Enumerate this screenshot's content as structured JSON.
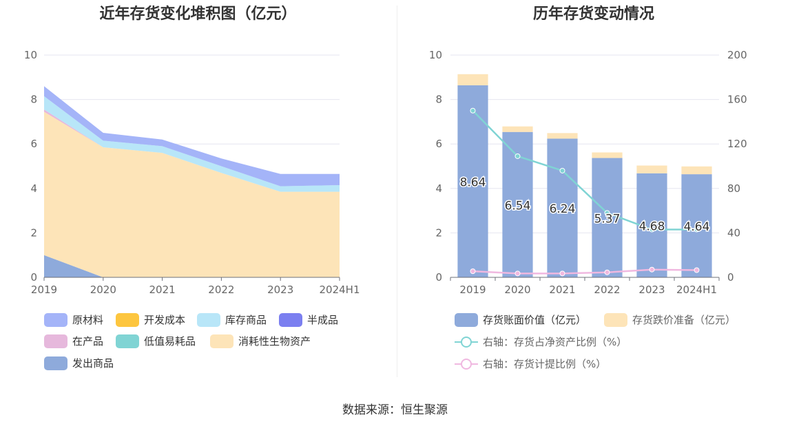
{
  "source": "数据来源：恒生聚源",
  "chart_data": [
    {
      "type": "area",
      "title": "近年存货变化堆积图（亿元）",
      "x": [
        "2019",
        "2020",
        "2021",
        "2022",
        "2023",
        "2024H1"
      ],
      "ylim": [
        0,
        10
      ],
      "yticks": [
        "0",
        "2",
        "4",
        "6",
        "8",
        "10"
      ],
      "stacked": true,
      "grid": true,
      "legend_position": "bottom",
      "series": [
        {
          "name": "发出商品",
          "color": "#8eaadb",
          "values": [
            1.0,
            0,
            0,
            0,
            0,
            0
          ]
        },
        {
          "name": "消耗性生物资产",
          "color": "#fde4b8",
          "values": [
            6.45,
            5.85,
            5.6,
            4.7,
            3.85,
            3.85
          ]
        },
        {
          "name": "低值易耗品",
          "color": "#80d4d4",
          "values": [
            0,
            0,
            0,
            0,
            0,
            0
          ]
        },
        {
          "name": "在产品",
          "color": "#e6b8dc",
          "values": [
            0.1,
            0,
            0,
            0,
            0,
            0
          ]
        },
        {
          "name": "半成品",
          "color": "#7b7ff0",
          "values": [
            0,
            0,
            0,
            0,
            0,
            0
          ]
        },
        {
          "name": "库存商品",
          "color": "#b8e6f8",
          "values": [
            0.6,
            0.3,
            0.3,
            0.3,
            0.25,
            0.3
          ]
        },
        {
          "name": "开发成本",
          "color": "#fdc63f",
          "values": [
            0,
            0,
            0,
            0,
            0,
            0
          ]
        },
        {
          "name": "原材料",
          "color": "#a4b4f8",
          "values": [
            0.45,
            0.35,
            0.3,
            0.35,
            0.55,
            0.5
          ]
        }
      ],
      "legend_order": [
        "原材料",
        "开发成本",
        "库存商品",
        "半成品",
        "在产品",
        "低值易耗品",
        "消耗性生物资产",
        "发出商品"
      ]
    },
    {
      "type": "bar",
      "title": "历年存货变动情况",
      "categories": [
        "2019",
        "2020",
        "2021",
        "2022",
        "2023",
        "2024H1"
      ],
      "ylim": [
        0,
        10
      ],
      "yticks": [
        "0",
        "2",
        "4",
        "6",
        "8",
        "10"
      ],
      "y2lim": [
        0,
        200
      ],
      "y2ticks": [
        "0",
        "40",
        "80",
        "120",
        "160",
        "200"
      ],
      "grid": true,
      "legend_position": "bottom",
      "series": [
        {
          "name": "存货账面价值（亿元）",
          "type": "bar",
          "stack": "a",
          "color": "#8eaadb",
          "values": [
            8.64,
            6.54,
            6.24,
            5.37,
            4.68,
            4.64
          ],
          "labels": [
            "8.64",
            "6.54",
            "6.24",
            "5.37",
            "4.68",
            "4.64"
          ]
        },
        {
          "name": "存货跌价准备（亿元）",
          "type": "bar",
          "stack": "a",
          "color": "#fde4b8",
          "values": [
            0.5,
            0.25,
            0.25,
            0.25,
            0.35,
            0.35
          ]
        },
        {
          "name": "右轴：存货占净资产比例（%）",
          "type": "line",
          "axis": "right",
          "color": "#80d4d4",
          "values": [
            150,
            109,
            96,
            58,
            43,
            43
          ]
        },
        {
          "name": "右轴：存货计提比例（%）",
          "type": "line",
          "axis": "right",
          "color": "#f0b8e0",
          "values": [
            5.5,
            3.5,
            3.5,
            4.5,
            7,
            6.5
          ]
        }
      ]
    }
  ]
}
